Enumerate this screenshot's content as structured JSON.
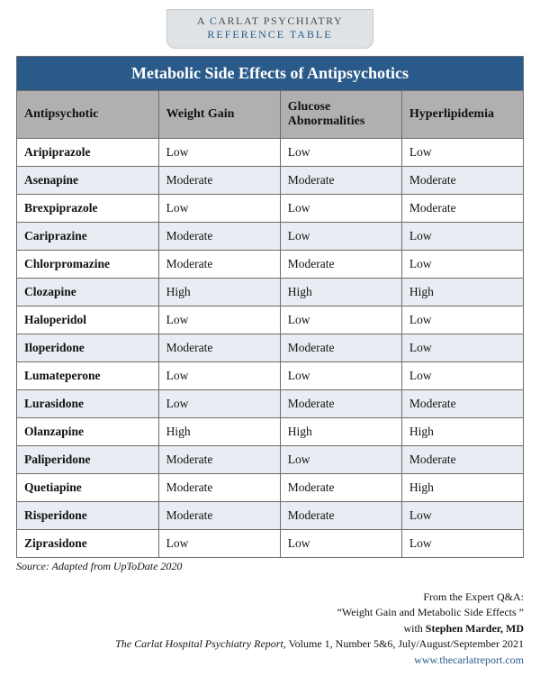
{
  "badge": {
    "line1_pre": "A ",
    "line1_c": "C",
    "line1_rest": "ARLAT PSYCHIATRY",
    "line2": "REFERENCE TABLE"
  },
  "table": {
    "title": "Metabolic Side Effects of Antipsychotics",
    "columns": [
      "Antipsychotic",
      "Weight Gain",
      "Glucose Abnormalities",
      "Hyperlipidemia"
    ],
    "col_widths": [
      "28%",
      "24%",
      "24%",
      "24%"
    ],
    "title_bg": "#2a5a8a",
    "title_color": "#ffffff",
    "header_bg": "#b0b0b0",
    "row_odd_bg": "#ffffff",
    "row_even_bg": "#e8edf3",
    "border_color": "#6b6b6b",
    "rows": [
      [
        "Aripiprazole",
        "Low",
        "Low",
        "Low"
      ],
      [
        "Asenapine",
        "Moderate",
        "Moderate",
        "Moderate"
      ],
      [
        "Brexpiprazole",
        "Low",
        "Low",
        "Moderate"
      ],
      [
        "Cariprazine",
        "Moderate",
        "Low",
        "Low"
      ],
      [
        "Chlorpromazine",
        "Moderate",
        "Moderate",
        "Low"
      ],
      [
        "Clozapine",
        "High",
        "High",
        "High"
      ],
      [
        "Haloperidol",
        "Low",
        "Low",
        "Low"
      ],
      [
        "Iloperidone",
        "Moderate",
        "Moderate",
        "Low"
      ],
      [
        "Lumateperone",
        "Low",
        "Low",
        "Low"
      ],
      [
        "Lurasidone",
        "Low",
        "Moderate",
        "Moderate"
      ],
      [
        "Olanzapine",
        "High",
        "High",
        "High"
      ],
      [
        "Paliperidone",
        "Moderate",
        "Low",
        "Moderate"
      ],
      [
        "Quetiapine",
        "Moderate",
        "Moderate",
        "High"
      ],
      [
        "Risperidone",
        "Moderate",
        "Moderate",
        "Low"
      ],
      [
        "Ziprasidone",
        "Low",
        "Low",
        "Low"
      ]
    ]
  },
  "source": "Source: Adapted from UpToDate 2020",
  "credits": {
    "l1": "From the Expert Q&A:",
    "l2": "“Weight Gain and Metabolic Side Effects ”",
    "l3_pre": "with ",
    "l3_name": "Stephen Marder, MD",
    "l4_journal": "The Carlat Hospital Psychiatry Report",
    "l4_rest": ", Volume 1, Number 5&6, July/August/September 2021",
    "url": "www.thecarlatreport.com"
  }
}
